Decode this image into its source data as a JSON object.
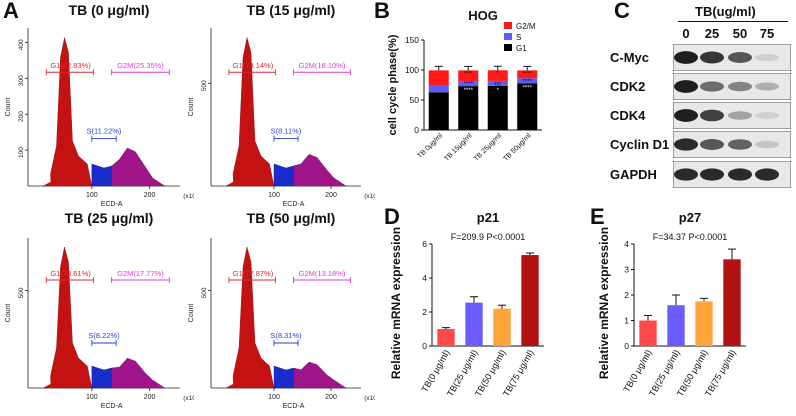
{
  "panels": {
    "a": "A",
    "b": "B",
    "c": "C",
    "d": "D",
    "e": "E"
  },
  "panel_a": {
    "x_axis_label": "ECD-A",
    "x_unit": "(x10⁴)",
    "y_axis_label": "Count",
    "plots": [
      {
        "title": "TB (0 μg/ml)",
        "y_ticks": [
          "100",
          "200",
          "300",
          "400"
        ],
        "x_ticks": [
          "100",
          "200"
        ],
        "g1_label": "G1(62.83%)",
        "s_label": "S(11.22%)",
        "g2m_label": "G2M(25.35%)",
        "g1": 62.83,
        "s": 11.22,
        "g2m": 25.35
      },
      {
        "title": "TB (15 μg/ml)",
        "y_ticks": [
          "500"
        ],
        "x_ticks": [
          "100",
          "200"
        ],
        "g1_label": "G1(73.14%)",
        "s_label": "S(8.11%)",
        "g2m_label": "G2M(18.10%)",
        "g1": 73.14,
        "s": 8.11,
        "g2m": 18.1
      },
      {
        "title": "TB (25 μg/ml)",
        "y_ticks": [
          "500"
        ],
        "x_ticks": [
          "100",
          "200"
        ],
        "g1_label": "G1(73.61%)",
        "s_label": "S(8.22%)",
        "g2m_label": "G2M(17.77%)",
        "g1": 73.61,
        "s": 8.22,
        "g2m": 17.77
      },
      {
        "title": "TB (50 μg/ml)",
        "y_ticks": [
          "500"
        ],
        "x_ticks": [
          "100",
          "200"
        ],
        "g1_label": "G1(77.87%)",
        "s_label": "S(8.31%)",
        "g2m_label": "G2M(13.18%)",
        "g1": 77.87,
        "s": 8.31,
        "g2m": 13.18
      }
    ]
  },
  "panel_c": {
    "header": "TB(ug/ml)",
    "lanes": [
      "0",
      "25",
      "50",
      "75"
    ],
    "proteins": [
      {
        "name": "C-Myc",
        "intensity": [
          0.95,
          0.85,
          0.7,
          0.15
        ]
      },
      {
        "name": "CDK2",
        "intensity": [
          0.95,
          0.6,
          0.5,
          0.3
        ]
      },
      {
        "name": "CDK4",
        "intensity": [
          0.95,
          0.8,
          0.35,
          0.15
        ]
      },
      {
        "name": "Cyclin D1",
        "intensity": [
          0.9,
          0.7,
          0.65,
          0.2
        ]
      },
      {
        "name": "GAPDH",
        "intensity": [
          0.9,
          0.9,
          0.9,
          0.9
        ]
      }
    ]
  },
  "chart_data": [
    {
      "type": "bar",
      "stacked": true,
      "title": "HOG",
      "ylabel": "cell cycle phase(%)",
      "xlabel": "",
      "ylim": [
        0,
        150
      ],
      "yticks": [
        0,
        50,
        100,
        150
      ],
      "categories": [
        "TB 0μg/ml",
        "TB 15μg/ml",
        "TB 25μg/ml",
        "TB 50μg/ml"
      ],
      "series": [
        {
          "name": "G1",
          "color": "#000000",
          "values": [
            62.83,
            73.14,
            73.61,
            77.87
          ]
        },
        {
          "name": "S",
          "color": "#5b5bff",
          "values": [
            11.22,
            8.11,
            8.22,
            8.31
          ]
        },
        {
          "name": "G2/M",
          "color": "#ff1a1a",
          "values": [
            25.35,
            18.1,
            17.77,
            13.18
          ]
        }
      ],
      "legend": [
        "G2/M",
        "S",
        "G1"
      ],
      "annotations": [
        {
          "category": 1,
          "segment": "G2/M",
          "text": "****"
        },
        {
          "category": 1,
          "segment": "S",
          "text": "****"
        },
        {
          "category": 1,
          "segment": "G1",
          "text": "****"
        },
        {
          "category": 2,
          "segment": "G2/M",
          "text": "*"
        },
        {
          "category": 2,
          "segment": "S",
          "text": "ns"
        },
        {
          "category": 2,
          "segment": "G1",
          "text": "*"
        },
        {
          "category": 3,
          "segment": "G2/M",
          "text": "****"
        },
        {
          "category": 3,
          "segment": "S",
          "text": "****"
        },
        {
          "category": 3,
          "segment": "G1",
          "text": "****"
        }
      ]
    },
    {
      "type": "bar",
      "title": "p21",
      "stat": "F=209.9 P<0.0001",
      "ylabel": "Relative mRNA expression",
      "ylim": [
        0,
        6
      ],
      "yticks": [
        0,
        2,
        4,
        6
      ],
      "categories": [
        "TB(0 μg/ml)",
        "TB(25 μg/ml)",
        "TB(50 μg/ml)",
        "TB(75 μg/ml)"
      ],
      "values": [
        1.0,
        2.55,
        2.2,
        5.35
      ],
      "errors": [
        0.08,
        0.35,
        0.2,
        0.12
      ],
      "colors": [
        "#ff4a4a",
        "#6a5cff",
        "#ffa33a",
        "#b31212"
      ]
    },
    {
      "type": "bar",
      "title": "p27",
      "stat": "F=34.37 P<0.0001",
      "ylabel": "Relative mRNA expression",
      "ylim": [
        0,
        4
      ],
      "yticks": [
        0,
        1,
        2,
        3,
        4
      ],
      "categories": [
        "TB(0 μg/ml)",
        "TB(25 μg/ml)",
        "TB(50 μg/ml)",
        "TB(75 μg/ml)"
      ],
      "values": [
        1.0,
        1.6,
        1.75,
        3.4
      ],
      "errors": [
        0.2,
        0.4,
        0.12,
        0.4
      ],
      "colors": [
        "#ff4a4a",
        "#6a5cff",
        "#ffa33a",
        "#b31212"
      ]
    }
  ]
}
